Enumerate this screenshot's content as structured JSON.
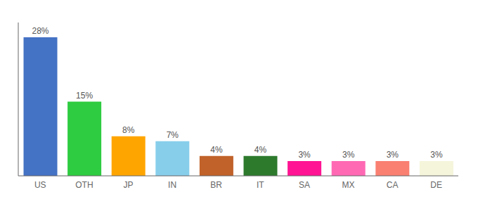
{
  "chart_data": {
    "type": "bar",
    "categories": [
      "US",
      "OTH",
      "JP",
      "IN",
      "BR",
      "IT",
      "SA",
      "MX",
      "CA",
      "DE"
    ],
    "values": [
      28,
      15,
      8,
      7,
      4,
      4,
      3,
      3,
      3,
      3
    ],
    "value_labels": [
      "28%",
      "15%",
      "8%",
      "7%",
      "4%",
      "4%",
      "3%",
      "3%",
      "3%",
      "3%"
    ],
    "colors": [
      "#4472C4",
      "#2ECC40",
      "#FFA500",
      "#87CEEB",
      "#C0622A",
      "#2D7A2D",
      "#FF1493",
      "#FF69B4",
      "#FA8072",
      "#F5F5DC"
    ],
    "ylim": [
      0,
      31
    ],
    "data_labels": true,
    "tick_labels": "x",
    "grid": false
  }
}
